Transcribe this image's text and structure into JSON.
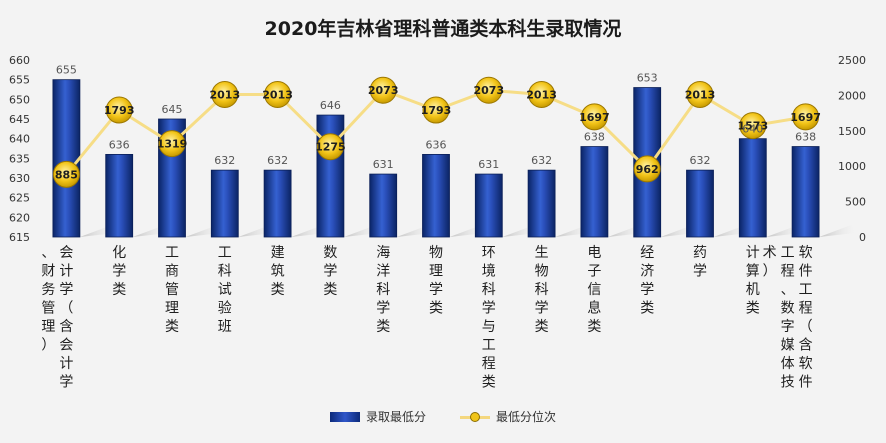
{
  "chart_data": {
    "type": "bar",
    "title": "2020年吉林省理科普通类本科生录取情况",
    "categories": [
      "会计学（含会计学、财务管理）",
      "化学类",
      "工商管理类",
      "工科试验班",
      "建筑类",
      "数学类",
      "海洋科学类",
      "物理学类",
      "环境科学与工程类",
      "生物科学类",
      "电子信息类",
      "经济学类",
      "药学",
      "计算机类",
      "软件工程（含软件工程、数字媒体技术）"
    ],
    "series": [
      {
        "name": "录取最低分",
        "type": "bar",
        "axis": "left",
        "values": [
          655,
          636,
          645,
          632,
          632,
          646,
          631,
          636,
          631,
          632,
          638,
          653,
          632,
          640,
          638
        ]
      },
      {
        "name": "最低分位次",
        "type": "line",
        "axis": "right",
        "values": [
          885,
          1793,
          1319,
          2013,
          2013,
          1275,
          2073,
          1793,
          2073,
          2013,
          1697,
          962,
          2013,
          1573,
          1697
        ]
      }
    ],
    "y_left": {
      "min": 615,
      "max": 660,
      "step": 5
    },
    "y_right": {
      "min": 0,
      "max": 2500,
      "step": 500
    },
    "legend_position": "bottom",
    "grid": false,
    "colors": {
      "bar": "#1c3f9e",
      "line": "#f6dd86",
      "marker": "#f2c418"
    }
  }
}
